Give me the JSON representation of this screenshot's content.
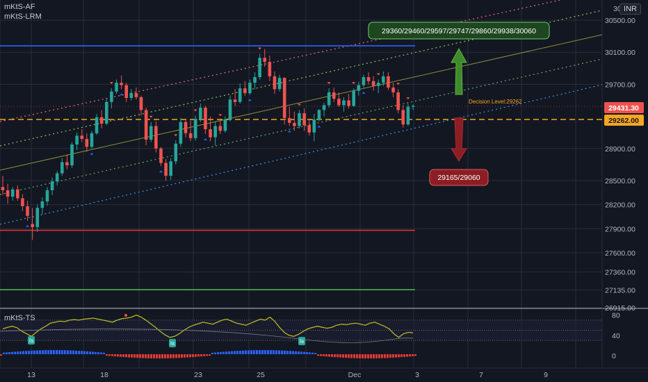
{
  "indicators": {
    "af": "mKtS-AF",
    "lrm": "mKtS-LRM",
    "ts": "mKtS-TS"
  },
  "currency_badge": "INR",
  "colors": {
    "bg": "#131722",
    "up": "#26a69a",
    "down": "#ef5350",
    "grid": "#2a2e39",
    "text": "#b2b5be",
    "target_box": "#1e4620",
    "stop_box": "#8b1e24",
    "decision": "#f5a623",
    "last_price_bg": "#ef5350"
  },
  "annotations": {
    "targets": "29360/29460/29597/29747/29860/29938/30060",
    "stops": "29165/29060",
    "decision": "Decision Level:29262"
  },
  "price_tags": {
    "last": "29431.30",
    "decision": "29262.00"
  },
  "ts_marker": "Is",
  "chart_data": [
    {
      "type": "candlestick",
      "title": "",
      "y_ticks": [
        30500,
        30100,
        29700,
        29431.3,
        29262,
        28900,
        28500,
        28200,
        27900,
        27600,
        27360,
        27135,
        26915
      ],
      "y_tick_labels": [
        "30500.00",
        "30100.00",
        "29700.00",
        "29431.30",
        "29262.00",
        "28900.00",
        "28500.00",
        "28200.00",
        "27900.00",
        "27600.00",
        "27360.00",
        "27135.00",
        "26915.00"
      ],
      "top_partial_label": "30",
      "x_tick_labels": [
        "13",
        "18",
        "23",
        "25",
        "Dec",
        "3",
        "7",
        "9"
      ],
      "levels": [
        {
          "name": "resistance",
          "value": 30180,
          "color": "#2962ff"
        },
        {
          "name": "support",
          "value": 27880,
          "color": "#e53935"
        },
        {
          "name": "lower-band",
          "value": 27140,
          "color": "#4caf50"
        },
        {
          "name": "decision",
          "value": 29262,
          "color": "#f5a623"
        }
      ],
      "candles": [
        [
          28420,
          28560,
          28320,
          28380
        ],
        [
          28380,
          28460,
          28210,
          28300
        ],
        [
          28300,
          28420,
          28250,
          28390
        ],
        [
          28390,
          28440,
          28250,
          28280
        ],
        [
          28280,
          28330,
          28120,
          28180
        ],
        [
          28180,
          28250,
          28000,
          28060
        ],
        [
          27960,
          28160,
          27760,
          27920
        ],
        [
          27920,
          28200,
          27860,
          28160
        ],
        [
          28160,
          28290,
          28080,
          28240
        ],
        [
          28240,
          28420,
          28190,
          28380
        ],
        [
          28380,
          28540,
          28320,
          28490
        ],
        [
          28490,
          28620,
          28440,
          28590
        ],
        [
          28590,
          28780,
          28560,
          28730
        ],
        [
          28730,
          28820,
          28640,
          28690
        ],
        [
          28690,
          28980,
          28660,
          28950
        ],
        [
          28950,
          29100,
          28880,
          29060
        ],
        [
          29060,
          29140,
          28980,
          29020
        ],
        [
          29020,
          29090,
          28860,
          28920
        ],
        [
          28920,
          29120,
          28900,
          29090
        ],
        [
          29090,
          29330,
          29070,
          29290
        ],
        [
          29290,
          29380,
          29150,
          29210
        ],
        [
          29210,
          29520,
          29190,
          29480
        ],
        [
          29480,
          29650,
          29400,
          29610
        ],
        [
          29610,
          29760,
          29580,
          29720
        ],
        [
          29720,
          29810,
          29640,
          29690
        ],
        [
          29690,
          29720,
          29480,
          29530
        ],
        [
          29530,
          29640,
          29500,
          29590
        ],
        [
          29590,
          29660,
          29510,
          29540
        ],
        [
          29540,
          29560,
          29310,
          29380
        ],
        [
          29380,
          29410,
          28940,
          29010
        ],
        [
          29010,
          29230,
          28980,
          29180
        ],
        [
          29180,
          29240,
          28850,
          28900
        ],
        [
          28900,
          28920,
          28680,
          28720
        ],
        [
          28720,
          28770,
          28500,
          28560
        ],
        [
          28560,
          28780,
          28510,
          28740
        ],
        [
          28740,
          29000,
          28700,
          28960
        ],
        [
          28960,
          29280,
          28920,
          29230
        ],
        [
          29230,
          29260,
          29040,
          29090
        ],
        [
          29090,
          29250,
          28990,
          29030
        ],
        [
          29030,
          29310,
          29000,
          29270
        ],
        [
          29270,
          29460,
          29230,
          29410
        ],
        [
          29410,
          29430,
          29080,
          29140
        ],
        [
          29140,
          29300,
          28990,
          29040
        ],
        [
          29040,
          29230,
          28940,
          29180
        ],
        [
          29180,
          29250,
          29080,
          29120
        ],
        [
          29120,
          29300,
          29100,
          29260
        ],
        [
          29260,
          29560,
          29240,
          29510
        ],
        [
          29510,
          29640,
          29430,
          29480
        ],
        [
          29480,
          29710,
          29460,
          29650
        ],
        [
          29650,
          29740,
          29560,
          29590
        ],
        [
          29590,
          29760,
          29570,
          29720
        ],
        [
          29720,
          29850,
          29640,
          29790
        ],
        [
          29790,
          30080,
          29760,
          30030
        ],
        [
          30030,
          30140,
          29920,
          29980
        ],
        [
          29980,
          30060,
          29740,
          29800
        ],
        [
          29800,
          29860,
          29580,
          29640
        ],
        [
          29640,
          29820,
          29610,
          29780
        ],
        [
          29780,
          29790,
          29200,
          29280
        ],
        [
          29280,
          29420,
          29180,
          29220
        ],
        [
          29220,
          29360,
          29120,
          29180
        ],
        [
          29180,
          29380,
          29150,
          29340
        ],
        [
          29340,
          29400,
          29120,
          29190
        ],
        [
          29190,
          29260,
          29060,
          29100
        ],
        [
          29100,
          29330,
          28990,
          29260
        ],
        [
          29260,
          29390,
          29240,
          29380
        ],
        [
          29380,
          29470,
          29300,
          29440
        ],
        [
          29440,
          29650,
          29410,
          29600
        ],
        [
          29600,
          29660,
          29480,
          29520
        ],
        [
          29520,
          29600,
          29420,
          29440
        ],
        [
          29440,
          29540,
          29360,
          29500
        ],
        [
          29500,
          29580,
          29400,
          29430
        ],
        [
          29430,
          29650,
          29420,
          29620
        ],
        [
          29620,
          29730,
          29560,
          29690
        ],
        [
          29690,
          29820,
          29660,
          29790
        ],
        [
          29790,
          29850,
          29700,
          29740
        ],
        [
          29740,
          29800,
          29620,
          29680
        ],
        [
          29680,
          29760,
          29590,
          29720
        ],
        [
          29720,
          29860,
          29680,
          29800
        ],
        [
          29800,
          29850,
          29630,
          29660
        ],
        [
          29660,
          29720,
          29540,
          29600
        ],
        [
          29600,
          29640,
          29340,
          29380
        ],
        [
          29380,
          29440,
          29160,
          29200
        ],
        [
          29200,
          29460,
          29180,
          29420
        ],
        [
          29420,
          29450,
          29380,
          29431.3
        ]
      ]
    },
    {
      "type": "line",
      "title": "",
      "y_ticks": [
        80,
        40,
        0
      ],
      "y_tick_labels": [
        "80",
        "40",
        "0"
      ],
      "series": [
        {
          "values": [
            55,
            58,
            60,
            57,
            50,
            45,
            40,
            48,
            55,
            60,
            66,
            68,
            70,
            69,
            72,
            73,
            72,
            74,
            75,
            76,
            74,
            72,
            70,
            68,
            72,
            75,
            76,
            78,
            82,
            78,
            72,
            65,
            58,
            50,
            43,
            38,
            40,
            45,
            52,
            58,
            62,
            65,
            68,
            66,
            64,
            68,
            72,
            74,
            70,
            66,
            64,
            62,
            66,
            70,
            74,
            72,
            78,
            70,
            58,
            48,
            42,
            40,
            44,
            50,
            55,
            58,
            60,
            58,
            56,
            58,
            62,
            64,
            63,
            65,
            66,
            64,
            62,
            66,
            68,
            64,
            60,
            55,
            45,
            38,
            45,
            48,
            47
          ]
        }
      ]
    }
  ]
}
